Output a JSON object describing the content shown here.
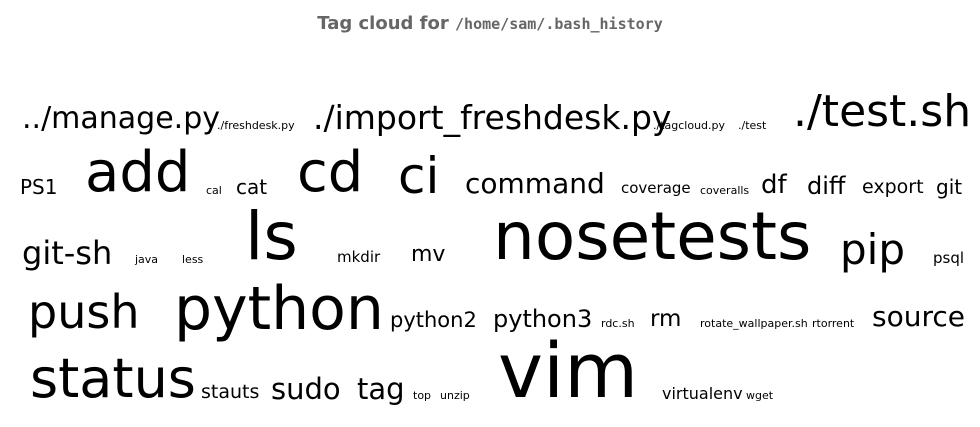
{
  "header": {
    "prefix": "Tag cloud for",
    "path": "/home/sam/.bash_history"
  },
  "tags": [
    "../manage.py",
    "./freshdesk.py",
    "./import_freshdesk.py",
    "./tagcloud.py",
    "./test",
    "./test.sh",
    "PS1",
    "add",
    "cal",
    "cat",
    "cd",
    "ci",
    "command",
    "coverage",
    "coveralls",
    "df",
    "diff",
    "export",
    "git",
    "git-sh",
    "java",
    "less",
    "ls",
    "mkdir",
    "mv",
    "nosetests",
    "pip",
    "psql",
    "push",
    "python",
    "python2",
    "python3",
    "rdc.sh",
    "rm",
    "rotate_wallpaper.sh",
    "rtorrent",
    "source",
    "status",
    "stauts",
    "sudo",
    "tag",
    "top",
    "unzip",
    "vim",
    "virtualenv",
    "wget"
  ]
}
